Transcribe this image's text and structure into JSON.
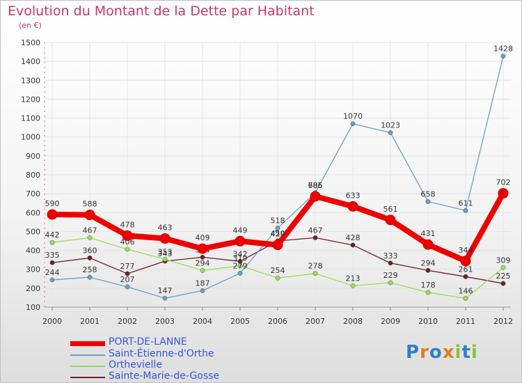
{
  "header": {
    "title": "Evolution du Montant de la Dette par Habitant",
    "unit": "(en €)"
  },
  "chart_data": {
    "type": "line",
    "title": "Evolution du Montant de la Dette par Habitant",
    "ylabel": "(en €)",
    "xlabel": "",
    "x": [
      "2000",
      "2001",
      "2002",
      "2003",
      "2004",
      "2005",
      "2006",
      "2007",
      "2008",
      "2009",
      "2010",
      "2011",
      "2012"
    ],
    "ylim": [
      100,
      1500
    ],
    "yticks": [
      100,
      200,
      300,
      400,
      500,
      600,
      700,
      800,
      900,
      1000,
      1100,
      1200,
      1300,
      1400,
      1500
    ],
    "grid": true,
    "legend_position": "bottom-left",
    "series": [
      {
        "name": "Sainte-Marie-de-Gosse",
        "color": "#6b1e2a",
        "values": [
          335,
          360,
          277,
          343,
          364,
          342,
          450,
          467,
          428,
          333,
          294,
          261,
          225
        ],
        "labels": [
          "335",
          "360",
          "277",
          "343",
          "364",
          "342",
          "450",
          "467",
          "428",
          "333",
          "294",
          "261",
          "225"
        ]
      },
      {
        "name": "Orthevielle",
        "color": "#99dd55",
        "values": [
          442,
          467,
          406,
          353,
          294,
          319,
          254,
          278,
          213,
          229,
          178,
          146,
          309
        ],
        "labels": [
          "442",
          "467",
          "406",
          "353",
          "294",
          "319",
          "254",
          "278",
          "213",
          "229",
          "178",
          "146",
          "309"
        ]
      },
      {
        "name": "Saint-Étienne-d'Orthe",
        "color": "#6b9ec9",
        "values": [
          244,
          258,
          207,
          147,
          187,
          279,
          518,
          705,
          1070,
          1023,
          658,
          611,
          1428
        ],
        "labels": [
          "244",
          "258",
          "207",
          "147",
          "187",
          "279",
          "518",
          "705",
          "1070",
          "1023",
          "658",
          "611",
          "1428"
        ]
      },
      {
        "name": "PORT-DE-LANNE",
        "color": "#ee0000",
        "values": [
          590,
          588,
          478,
          463,
          409,
          449,
          429,
          686,
          633,
          561,
          431,
          344,
          702
        ],
        "labels": [
          "590",
          "588",
          "478",
          "463",
          "409",
          "449",
          "429",
          "686",
          "633",
          "561",
          "431",
          "344",
          "702"
        ]
      }
    ]
  },
  "legend": [
    {
      "label": "PORT-DE-LANNE",
      "color": "#ee0000",
      "text_color": "#3355dd"
    },
    {
      "label": "Saint-Étienne-d'Orthe",
      "color": "#6b9ec9",
      "text_color": "#3355dd"
    },
    {
      "label": "Orthevielle",
      "color": "#99dd55",
      "text_color": "#3355dd"
    },
    {
      "label": "Sainte-Marie-de-Gosse",
      "color": "#6b1e2a",
      "text_color": "#3355dd"
    }
  ],
  "logo": {
    "letters": [
      "P",
      "r",
      "o",
      "x",
      "i",
      "t",
      "i"
    ]
  }
}
